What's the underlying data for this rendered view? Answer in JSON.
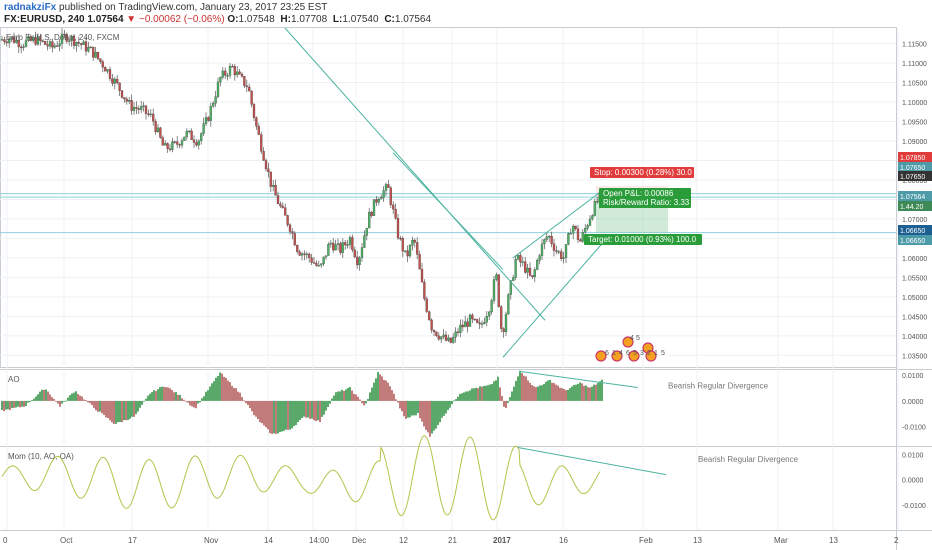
{
  "header": {
    "author": "radnakziFx",
    "published_text": "published on TradingView.com, January 23, 2017 23:25 EST",
    "symbol": "FX:EURUSD, 240",
    "last": "1.07564",
    "change": "▼ −0.00062 (−0.06%)",
    "o_label": "O:",
    "o_value": "1.07548",
    "h_label": "H:",
    "h_value": "1.07708",
    "l_label": "L:",
    "l_value": "1.07540",
    "c_label": "C:",
    "c_value": "1.07564"
  },
  "colors": {
    "up": "#4caf63",
    "down": "#c0504d",
    "trend": "#4cb3a0",
    "axis_bg": "#ffffff",
    "stop": "#e03c3c",
    "target": "#2a9d3a",
    "grid": "#eef1f4"
  },
  "chart_data": [
    {
      "type": "candlestick",
      "title": "Euro Fx/U.S. Dollar, 240, FXCM",
      "ylim": [
        1.032,
        1.119
      ],
      "y_ticks": [
        "1.11500",
        "1.11000",
        "1.10500",
        "1.10000",
        "1.09500",
        "1.09000",
        "1.08500",
        "1.08000",
        "1.07500",
        "1.07000",
        "1.06500",
        "1.06000",
        "1.05500",
        "1.05000",
        "1.04500",
        "1.04000",
        "1.03500"
      ],
      "x_ticks": [
        "0",
        "Oct",
        "17",
        "Nov",
        "14",
        "14:00",
        "Dec",
        "12",
        "21",
        "2017",
        "16",
        "Feb",
        "13",
        "Mar",
        "13",
        "2"
      ],
      "price_path": [
        [
          0,
          1.116
        ],
        [
          10,
          1.1165
        ],
        [
          22,
          1.115
        ],
        [
          36,
          1.116
        ],
        [
          52,
          1.114
        ],
        [
          66,
          1.117
        ],
        [
          80,
          1.115
        ],
        [
          92,
          1.113
        ],
        [
          105,
          1.109
        ],
        [
          118,
          1.104
        ],
        [
          130,
          1.099
        ],
        [
          142,
          1.098
        ],
        [
          152,
          1.096
        ],
        [
          164,
          1.088
        ],
        [
          176,
          1.089
        ],
        [
          186,
          1.092
        ],
        [
          198,
          1.09
        ],
        [
          208,
          1.096
        ],
        [
          220,
          1.106
        ],
        [
          232,
          1.109
        ],
        [
          240,
          1.106
        ],
        [
          248,
          1.104
        ],
        [
          256,
          1.094
        ],
        [
          264,
          1.086
        ],
        [
          272,
          1.078
        ],
        [
          282,
          1.072
        ],
        [
          290,
          1.068
        ],
        [
          298,
          1.062
        ],
        [
          310,
          1.06
        ],
        [
          320,
          1.057
        ],
        [
          330,
          1.064
        ],
        [
          340,
          1.062
        ],
        [
          350,
          1.065
        ],
        [
          358,
          1.059
        ],
        [
          368,
          1.07
        ],
        [
          378,
          1.076
        ],
        [
          388,
          1.078
        ],
        [
          398,
          1.066
        ],
        [
          406,
          1.06
        ],
        [
          414,
          1.065
        ],
        [
          424,
          1.05
        ],
        [
          432,
          1.042
        ],
        [
          440,
          1.04
        ],
        [
          450,
          1.038
        ],
        [
          460,
          1.042
        ],
        [
          470,
          1.044
        ],
        [
          480,
          1.042
        ],
        [
          490,
          1.048
        ],
        [
          496,
          1.056
        ],
        [
          502,
          1.04
        ],
        [
          508,
          1.049
        ],
        [
          516,
          1.06
        ],
        [
          524,
          1.058
        ],
        [
          532,
          1.054
        ],
        [
          540,
          1.062
        ],
        [
          548,
          1.066
        ],
        [
          556,
          1.062
        ],
        [
          564,
          1.06
        ],
        [
          572,
          1.069
        ],
        [
          580,
          1.064
        ],
        [
          586,
          1.068
        ],
        [
          592,
          1.072
        ],
        [
          600,
          1.0756
        ]
      ],
      "horizontal_levels": [
        1.0765,
        1.0756,
        1.0665
      ],
      "trendlines": [
        {
          "from": [
            285,
            1.119
          ],
          "to": [
            545,
            1.044
          ]
        },
        {
          "from": [
            503,
            1.0345
          ],
          "to": [
            610,
            1.066
          ]
        },
        {
          "from": [
            513,
            1.06
          ],
          "to": [
            605,
            1.0778
          ]
        },
        {
          "from": [
            393,
            1.087
          ],
          "to": [
            503,
            1.057
          ]
        }
      ],
      "price_tags": [
        {
          "value": "1.07850",
          "color": "#e03c3c"
        },
        {
          "value": "1.07650",
          "color": "#4d9aa8"
        },
        {
          "value": "1.07650",
          "color": "#333333"
        },
        {
          "value": "1.07564",
          "color": "#4d9aa8"
        },
        {
          "value": "1.44.20",
          "color": "#3d8a56"
        },
        {
          "value": "1.06650",
          "color": "#1d5f91"
        },
        {
          "value": "1.06650",
          "color": "#4d9aa8"
        }
      ],
      "position": {
        "stop": "Stop: 0.00300 (0.28%) 30.0",
        "open_pl": "Open P&L: 0.00086",
        "risk_reward": "Risk/Reward Ratio: 3.33",
        "target": "Target: 0.01000 (0.93%) 100.0"
      },
      "markers": [
        "4",
        "5",
        "6",
        "1",
        "4",
        "6",
        "5",
        "3",
        "2",
        "1",
        "5"
      ]
    },
    {
      "type": "bar",
      "title": "AO",
      "ylim": [
        -0.0175,
        0.012
      ],
      "y_ticks": [
        "0.0100",
        "0.0000",
        "-0.0100"
      ],
      "annotation": "Bearish Regular Divergence",
      "wave": [
        [
          0,
          -0.004
        ],
        [
          25,
          -0.002
        ],
        [
          45,
          0.005
        ],
        [
          60,
          -0.002
        ],
        [
          75,
          0.004
        ],
        [
          95,
          -0.003
        ],
        [
          115,
          -0.009
        ],
        [
          135,
          -0.006
        ],
        [
          150,
          0.003
        ],
        [
          165,
          0.006
        ],
        [
          180,
          0.002
        ],
        [
          195,
          -0.003
        ],
        [
          220,
          0.011
        ],
        [
          240,
          0.003
        ],
        [
          255,
          -0.006
        ],
        [
          272,
          -0.013
        ],
        [
          290,
          -0.011
        ],
        [
          305,
          -0.006
        ],
        [
          320,
          -0.008
        ],
        [
          335,
          0.003
        ],
        [
          350,
          0.005
        ],
        [
          365,
          -0.002
        ],
        [
          378,
          0.011
        ],
        [
          390,
          0.006
        ],
        [
          405,
          -0.007
        ],
        [
          418,
          -0.005
        ],
        [
          430,
          -0.014
        ],
        [
          445,
          -0.005
        ],
        [
          460,
          0.003
        ],
        [
          475,
          0.005
        ],
        [
          490,
          0.006
        ],
        [
          498,
          0.009
        ],
        [
          505,
          -0.004
        ],
        [
          520,
          0.012
        ],
        [
          535,
          0.005
        ],
        [
          550,
          0.008
        ],
        [
          565,
          0.004
        ],
        [
          580,
          0.007
        ],
        [
          590,
          0.005
        ],
        [
          602,
          0.008
        ]
      ]
    },
    {
      "type": "line",
      "title": "Mom (10, AO, OA)",
      "ylim": [
        -0.02,
        0.013
      ],
      "y_ticks": [
        "0.0100",
        "0.0000",
        "-0.0100"
      ],
      "annotation": "Bearish Regular Divergence"
    }
  ]
}
